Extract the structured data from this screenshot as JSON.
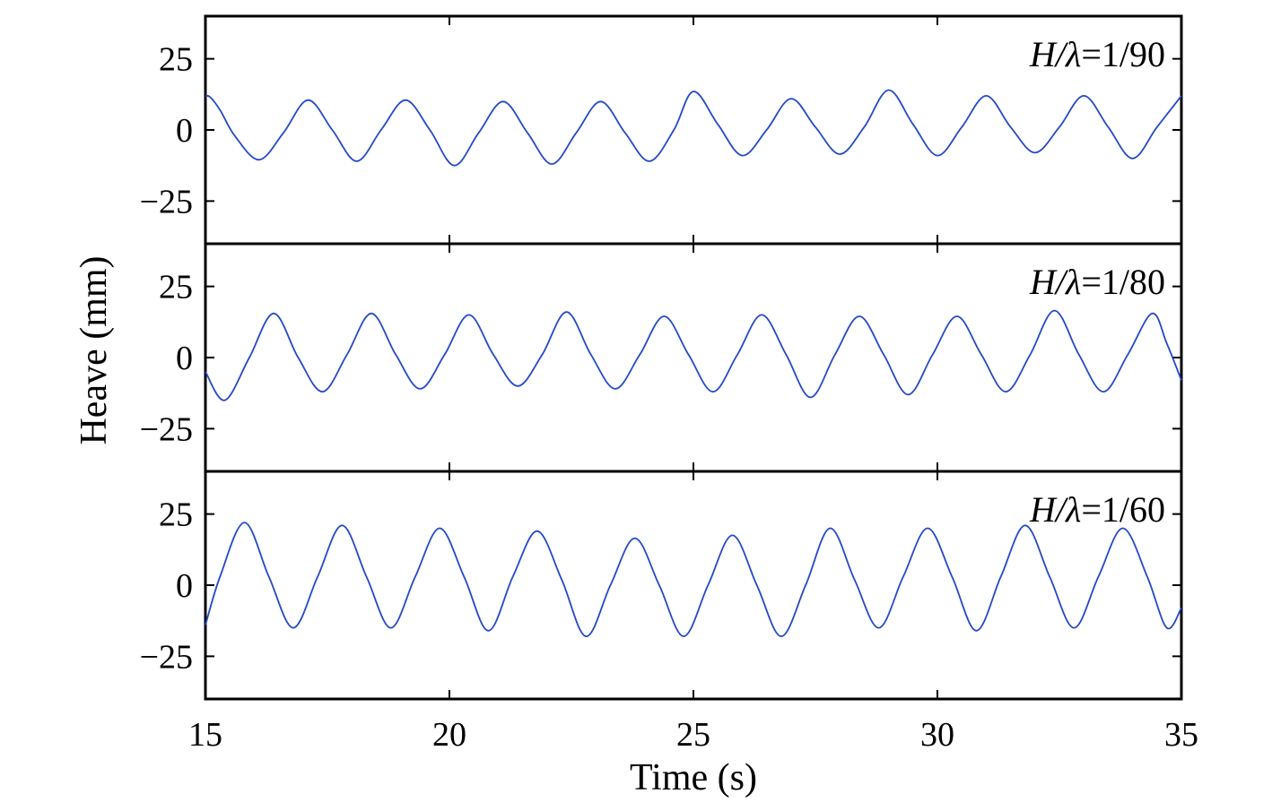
{
  "chart_data": {
    "type": "line",
    "xlabel": "Time (s)",
    "ylabel": "Heave (mm)",
    "xlim": [
      15,
      35
    ],
    "xticks": [
      "15",
      "20",
      "25",
      "30",
      "35"
    ],
    "grid": false,
    "colors": {
      "series": "#2348c8",
      "axes": "#000000"
    },
    "panels": [
      {
        "annotation": {
          "prefix": "H/λ",
          "suffix": "=1/90"
        },
        "ylim": [
          -40,
          40
        ],
        "yticks": [
          "25",
          "0",
          "−25"
        ],
        "series": [
          {
            "x": [
              15.0,
              15.1,
              15.3,
              15.6,
              16.1,
              16.6,
              17.1,
              17.6,
              18.1,
              18.6,
              19.1,
              19.6,
              20.1,
              20.6,
              21.1,
              21.6,
              22.1,
              22.6,
              23.1,
              23.6,
              24.1,
              24.6,
              25.0,
              25.5,
              26.0,
              26.5,
              27.0,
              27.5,
              28.0,
              28.5,
              29.0,
              29.5,
              30.0,
              30.5,
              31.0,
              31.5,
              32.0,
              32.5,
              33.0,
              33.5,
              34.0,
              34.5,
              35.0
            ],
            "y": [
              12,
              11.5,
              7,
              -2,
              -10.5,
              -1,
              10.5,
              0,
              -11,
              0,
              10.5,
              0,
              -12.5,
              -1,
              10,
              -1,
              -12,
              -1,
              10,
              -1,
              -11,
              0,
              13.5,
              2,
              -9,
              0,
              11,
              1,
              -8.5,
              1,
              14,
              2,
              -9,
              1,
              12,
              1,
              -8,
              1,
              12,
              1,
              -10,
              1,
              12
            ]
          }
        ]
      },
      {
        "annotation": {
          "prefix": "H/λ",
          "suffix": "=1/80"
        },
        "ylim": [
          -40,
          40
        ],
        "yticks": [
          "25",
          "0",
          "−25"
        ],
        "series": [
          {
            "x": [
              15.0,
              15.4,
              15.9,
              16.4,
              16.9,
              17.4,
              17.9,
              18.4,
              18.9,
              19.4,
              19.9,
              20.4,
              20.9,
              21.4,
              21.9,
              22.4,
              22.9,
              23.4,
              23.9,
              24.4,
              24.9,
              25.4,
              25.9,
              26.4,
              26.9,
              27.4,
              27.9,
              28.4,
              28.9,
              29.4,
              29.9,
              30.4,
              30.9,
              31.4,
              31.9,
              32.4,
              32.9,
              33.4,
              33.9,
              34.4,
              34.7,
              35.0
            ],
            "y": [
              -5,
              -15,
              0,
              15.5,
              0,
              -12,
              1,
              15.5,
              1,
              -11,
              1,
              15,
              1,
              -10,
              1,
              16,
              1,
              -11,
              1,
              14.5,
              1,
              -12,
              1,
              15,
              1,
              -14,
              1,
              14.5,
              1,
              -13,
              1,
              14.5,
              1,
              -12,
              1,
              16.5,
              1,
              -12,
              1,
              15.5,
              5,
              -8
            ]
          }
        ]
      },
      {
        "annotation": {
          "prefix": "H/λ",
          "suffix": "=1/60"
        },
        "ylim": [
          -40,
          40
        ],
        "yticks": [
          "25",
          "0",
          "−25"
        ],
        "series": [
          {
            "x": [
              15.0,
              15.3,
              15.8,
              16.3,
              16.8,
              17.3,
              17.8,
              18.3,
              18.8,
              19.3,
              19.8,
              20.3,
              20.8,
              21.3,
              21.8,
              22.3,
              22.8,
              23.3,
              23.8,
              24.3,
              24.8,
              25.3,
              25.8,
              26.3,
              26.8,
              27.3,
              27.8,
              28.3,
              28.8,
              29.3,
              29.8,
              30.3,
              30.8,
              31.3,
              31.8,
              32.3,
              32.8,
              33.3,
              33.8,
              34.3,
              34.7,
              35.0
            ],
            "y": [
              -14,
              3,
              22,
              3,
              -15,
              3,
              21,
              3,
              -15,
              3,
              20,
              3,
              -16,
              3,
              19,
              2,
              -18,
              0,
              16.5,
              0,
              -18,
              0,
              17.5,
              0,
              -18,
              0,
              20,
              2,
              -15,
              3,
              20,
              3,
              -16,
              3,
              21,
              3,
              -15,
              3,
              20,
              3,
              -15,
              -8
            ]
          }
        ]
      }
    ]
  }
}
